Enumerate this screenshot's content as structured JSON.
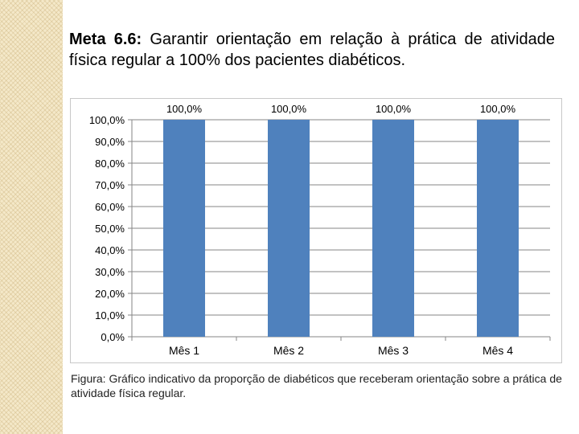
{
  "heading": {
    "label": "Meta 6.6:",
    "text": "Garantir orientação em relação à prática de atividade física regular a 100% dos pacientes diabéticos."
  },
  "caption": "Figura: Gráfico indicativo da proporção de diabéticos que receberam orientação sobre a prática de atividade física regular.",
  "colors": {
    "bar": "#4f81bd",
    "grid": "#868686",
    "text": "#000000"
  },
  "chart_data": {
    "type": "bar",
    "categories": [
      "Mês 1",
      "Mês 2",
      "Mês 3",
      "Mês 4"
    ],
    "values": [
      100,
      100,
      100,
      100
    ],
    "data_labels": [
      "100,0%",
      "100,0%",
      "100,0%",
      "100,0%"
    ],
    "yticks": [
      "0,0%",
      "10,0%",
      "20,0%",
      "30,0%",
      "40,0%",
      "50,0%",
      "60,0%",
      "70,0%",
      "80,0%",
      "90,0%",
      "100,0%"
    ],
    "ylim": [
      0,
      100
    ],
    "grid": true,
    "legend": "none"
  }
}
